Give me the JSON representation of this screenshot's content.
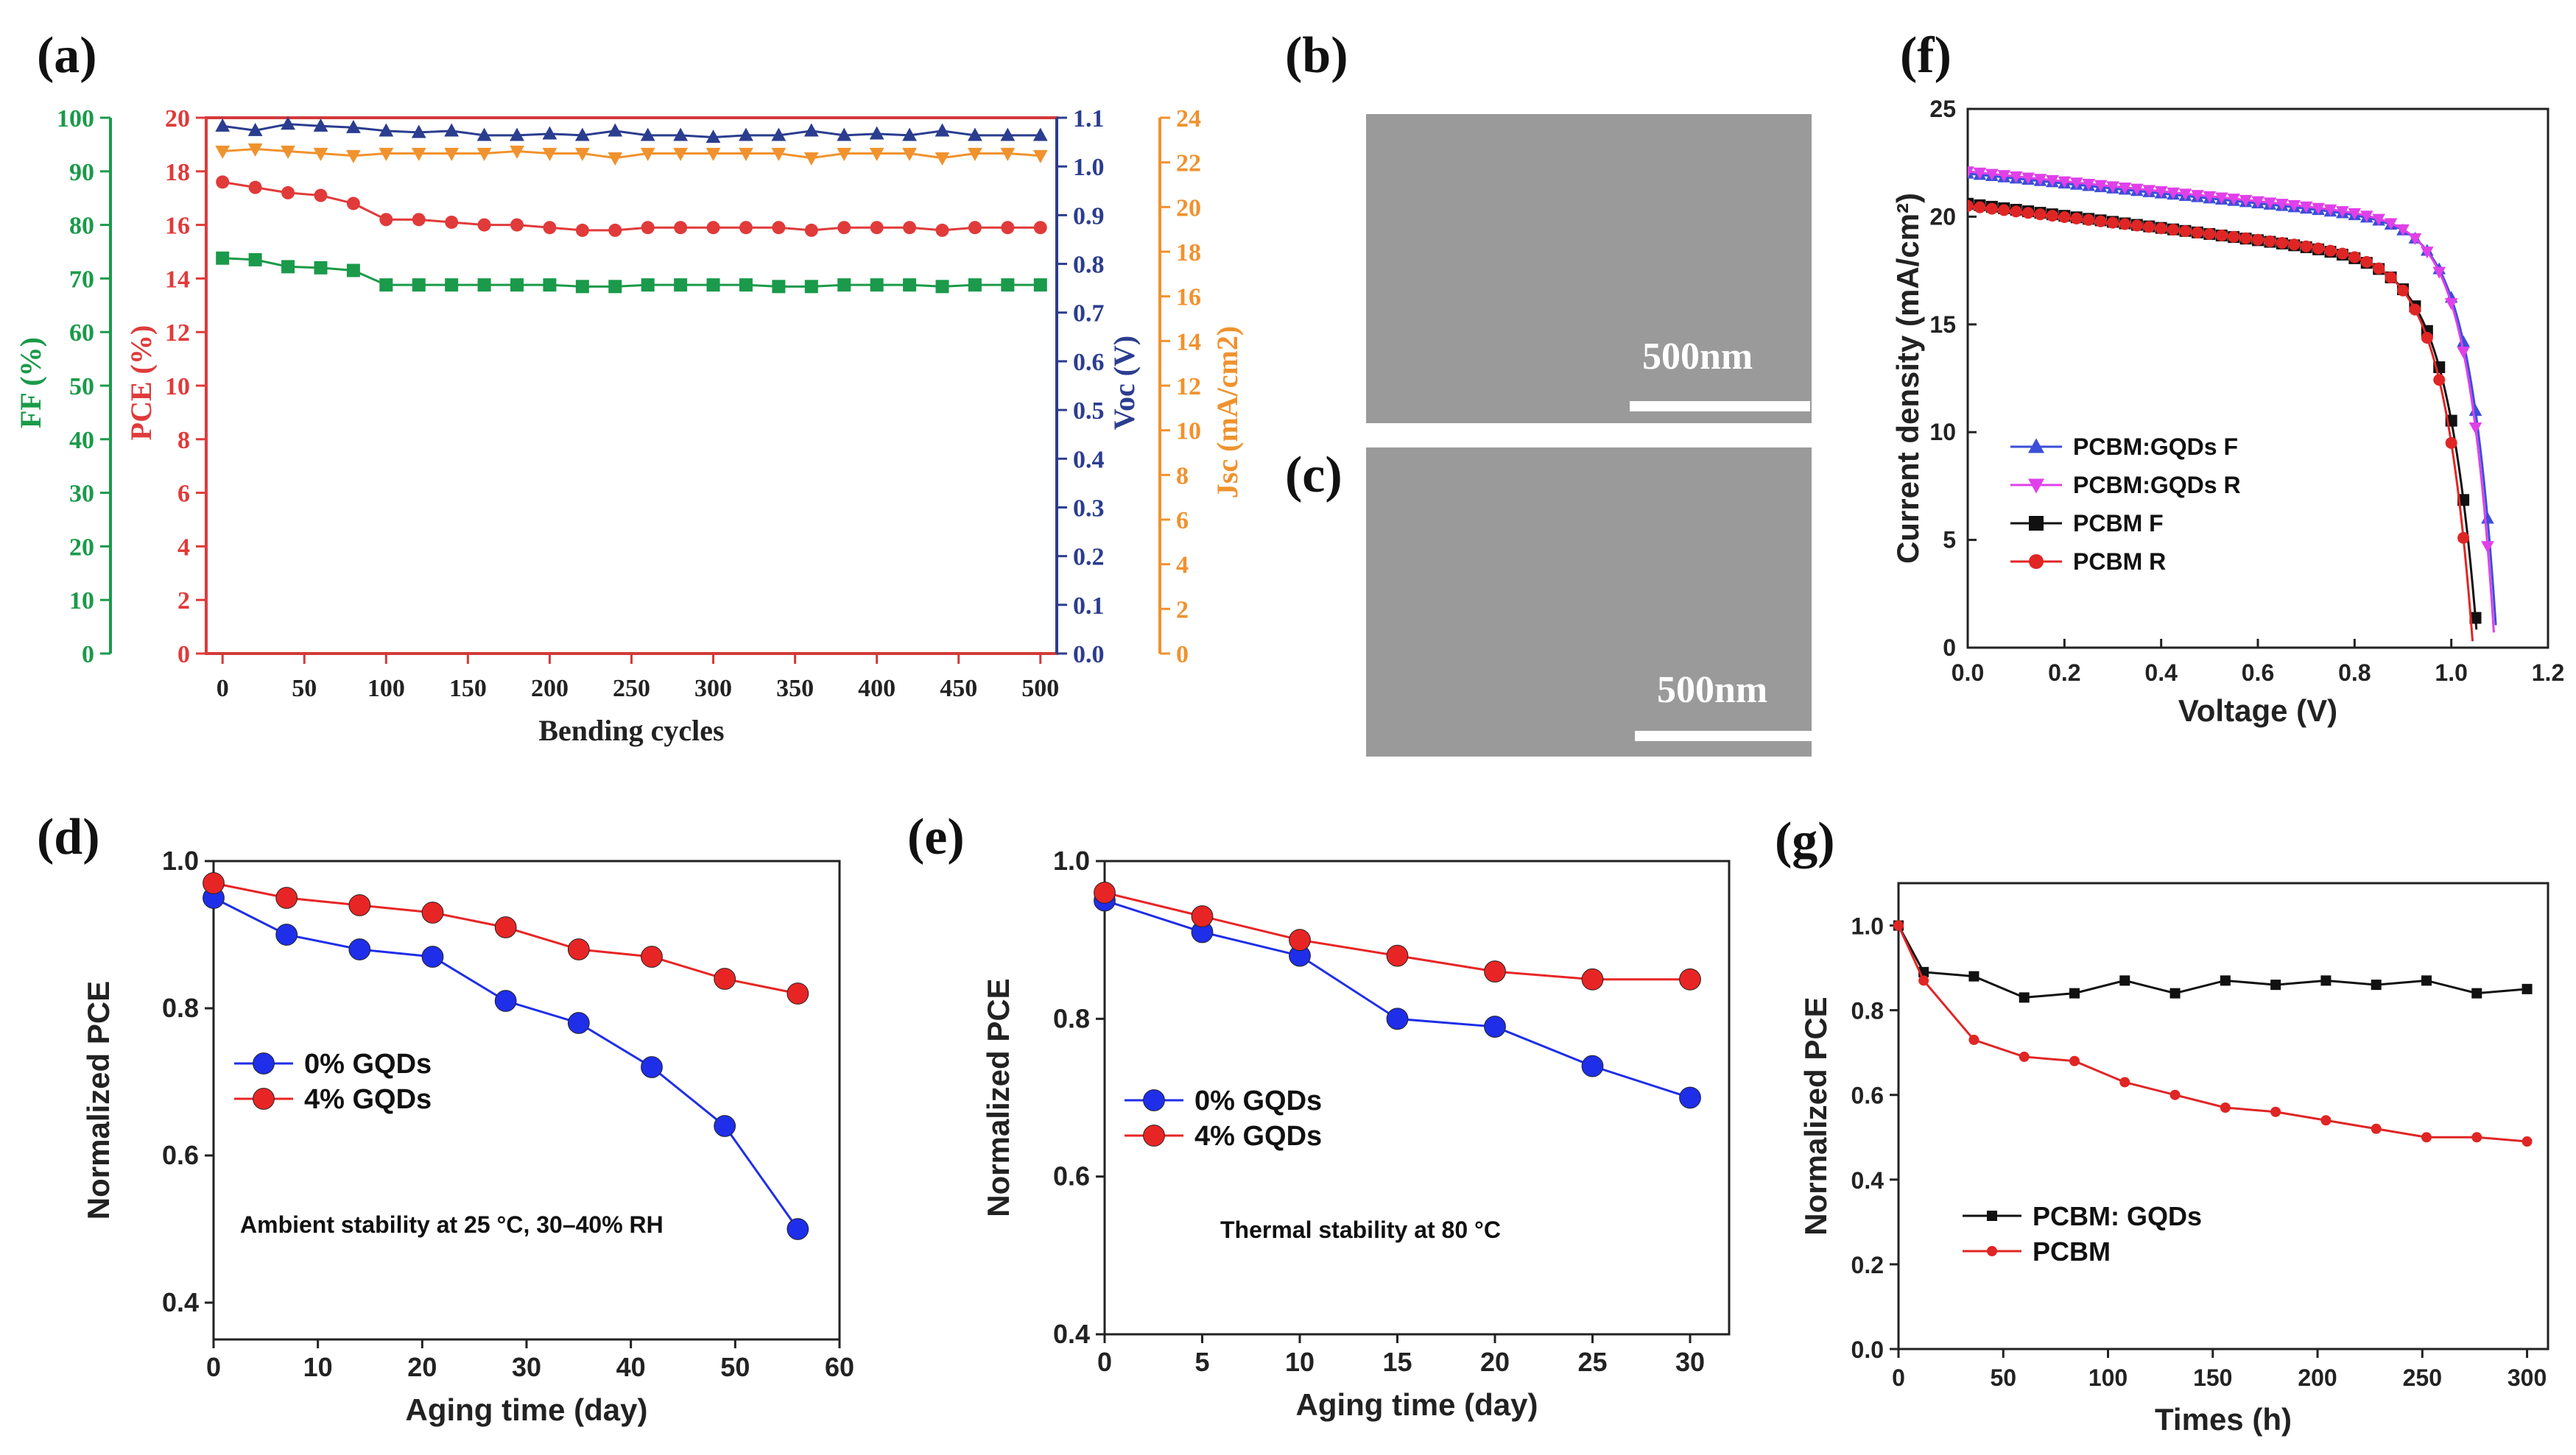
{
  "figure": {
    "panel_letters": [
      "(a)",
      "(b)",
      "(c)",
      "(d)",
      "(e)",
      "(f)",
      "(g)"
    ]
  },
  "sem": {
    "b_scale": "500nm",
    "c_scale": "500nm"
  },
  "chart_data": [
    {
      "id": "a",
      "type": "scatter",
      "xlabel": "Bending cycles",
      "x": [
        0,
        20,
        40,
        60,
        80,
        100,
        120,
        140,
        160,
        180,
        200,
        220,
        240,
        260,
        280,
        300,
        320,
        340,
        360,
        380,
        400,
        420,
        440,
        460,
        480,
        500
      ],
      "xlim": [
        -10,
        510
      ],
      "xticks": [
        0,
        50,
        100,
        150,
        200,
        250,
        300,
        350,
        400,
        450,
        500
      ],
      "axes": [
        {
          "id": "ff",
          "label": "FF (%)",
          "range": [
            0,
            100
          ],
          "ticks": [
            0,
            10,
            20,
            30,
            40,
            50,
            60,
            70,
            80,
            90,
            100
          ],
          "color": "#1a9a4a"
        },
        {
          "id": "pce",
          "label": "PCE (%)",
          "range": [
            0,
            20
          ],
          "ticks": [
            0,
            2,
            4,
            6,
            8,
            10,
            12,
            14,
            16,
            18,
            20
          ],
          "color": "#e03a3a"
        },
        {
          "id": "voc",
          "label": "Voc (V)",
          "range": [
            0,
            1.1
          ],
          "ticks": [
            "0.0",
            "0.1",
            "0.2",
            "0.3",
            "0.4",
            "0.5",
            "0.6",
            "0.7",
            "0.8",
            "0.9",
            "1.0",
            "1.1"
          ],
          "color": "#2b3d8f"
        },
        {
          "id": "jsc",
          "label": "Jsc (mA/cm2)",
          "range": [
            0,
            24
          ],
          "ticks": [
            0,
            2,
            4,
            6,
            8,
            10,
            12,
            14,
            16,
            18,
            20,
            22,
            24
          ],
          "color": "#f0922e"
        }
      ],
      "series": [
        {
          "name": "FF",
          "axis": "ff",
          "marker": "square",
          "color": "#1a9a4a",
          "values": [
            73.8,
            73.5,
            72.2,
            72,
            71.5,
            68.8,
            68.8,
            68.8,
            68.8,
            68.8,
            68.8,
            68.5,
            68.5,
            68.8,
            68.8,
            68.8,
            68.8,
            68.5,
            68.5,
            68.8,
            68.8,
            68.8,
            68.5,
            68.8,
            68.8,
            68.8
          ]
        },
        {
          "name": "PCE",
          "axis": "pce",
          "marker": "circle",
          "color": "#e03a3a",
          "values": [
            17.6,
            17.4,
            17.2,
            17.1,
            16.8,
            16.2,
            16.2,
            16.1,
            16,
            16,
            15.9,
            15.8,
            15.8,
            15.9,
            15.9,
            15.9,
            15.9,
            15.9,
            15.8,
            15.9,
            15.9,
            15.9,
            15.8,
            15.9,
            15.9,
            15.9
          ]
        },
        {
          "name": "Voc",
          "axis": "voc",
          "marker": "triangle-up",
          "color": "#2b3d8f",
          "values": [
            1.083,
            1.074,
            1.087,
            1.083,
            1.08,
            1.073,
            1.07,
            1.073,
            1.064,
            1.064,
            1.067,
            1.064,
            1.073,
            1.064,
            1.064,
            1.06,
            1.064,
            1.064,
            1.073,
            1.064,
            1.067,
            1.064,
            1.073,
            1.064,
            1.064,
            1.064
          ]
        },
        {
          "name": "Jsc",
          "axis": "jsc",
          "marker": "triangle-down",
          "color": "#f0922e",
          "values": [
            22.5,
            22.6,
            22.5,
            22.4,
            22.3,
            22.4,
            22.4,
            22.4,
            22.4,
            22.5,
            22.4,
            22.4,
            22.2,
            22.4,
            22.4,
            22.4,
            22.4,
            22.4,
            22.2,
            22.4,
            22.4,
            22.4,
            22.2,
            22.4,
            22.4,
            22.3
          ]
        }
      ]
    },
    {
      "id": "f",
      "type": "line",
      "xlabel": "Voltage (V)",
      "ylabel": "Current density (mA/cm²)",
      "xlim": [
        0,
        1.2
      ],
      "ylim": [
        0,
        25
      ],
      "xticks": [
        "0.0",
        "0.2",
        "0.4",
        "0.6",
        "0.8",
        "1.0",
        "1.2"
      ],
      "yticks": [
        0,
        5,
        10,
        15,
        20,
        25
      ],
      "legend_position": "lower-left",
      "series": [
        {
          "name": "PCBM:GQDs F",
          "marker": "triangle-up",
          "color": "#3b4fd8",
          "jsc": 22.0,
          "slope": 2.3,
          "voc": 1.095,
          "k": 0.055
        },
        {
          "name": "PCBM:GQDs R",
          "marker": "triangle-down",
          "color": "#e040e8",
          "jsc": 22.1,
          "slope": 2.3,
          "voc": 1.09,
          "k": 0.055
        },
        {
          "name": "PCBM F",
          "marker": "square",
          "color": "#111111",
          "jsc": 20.6,
          "slope": 2.8,
          "voc": 1.055,
          "k": 0.062
        },
        {
          "name": "PCBM R",
          "marker": "circle",
          "color": "#e02525",
          "jsc": 20.5,
          "slope": 2.6,
          "voc": 1.045,
          "k": 0.06
        }
      ]
    },
    {
      "id": "d",
      "type": "line",
      "xlabel": "Aging time (day)",
      "ylabel": "Normalized PCE",
      "xlim": [
        0,
        60
      ],
      "ylim": [
        0.35,
        1.0
      ],
      "xticks": [
        0,
        10,
        20,
        30,
        40,
        50,
        60
      ],
      "yticks": [
        "0.4",
        "0.6",
        "0.8",
        "1.0"
      ],
      "annotation": "Ambient stability at 25 °C, 30–40% RH",
      "legend_position": "center-left",
      "x": [
        0,
        7,
        14,
        21,
        28,
        35,
        42,
        49,
        56
      ],
      "series": [
        {
          "name": "0% GQDs",
          "color": "#1f2ee8",
          "values": [
            0.95,
            0.9,
            0.88,
            0.87,
            0.81,
            0.78,
            0.72,
            0.64,
            0.5
          ]
        },
        {
          "name": "4% GQDs",
          "color": "#e82525",
          "values": [
            0.97,
            0.95,
            0.94,
            0.93,
            0.91,
            0.88,
            0.87,
            0.84,
            0.82
          ]
        }
      ]
    },
    {
      "id": "e",
      "type": "line",
      "xlabel": "Aging time (day)",
      "ylabel": "Normalized PCE",
      "xlim": [
        0,
        32
      ],
      "ylim": [
        0.4,
        1.0
      ],
      "xticks": [
        0,
        5,
        10,
        15,
        20,
        25,
        30
      ],
      "yticks": [
        "0.4",
        "0.6",
        "0.8",
        "1.0"
      ],
      "annotation": "Thermal stability at 80 °C",
      "legend_position": "center-left",
      "x": [
        0,
        5,
        10,
        15,
        20,
        25,
        30
      ],
      "series": [
        {
          "name": "0% GQDs",
          "color": "#1f2ee8",
          "values": [
            0.95,
            0.91,
            0.88,
            0.8,
            0.79,
            0.74,
            0.7
          ]
        },
        {
          "name": "4% GQDs",
          "color": "#e82525",
          "values": [
            0.96,
            0.93,
            0.9,
            0.88,
            0.86,
            0.85,
            0.85
          ]
        }
      ]
    },
    {
      "id": "g",
      "type": "line",
      "xlabel": "Times (h)",
      "ylabel": "Normalized PCE",
      "xlim": [
        0,
        310
      ],
      "ylim": [
        0,
        1.1
      ],
      "xticks": [
        0,
        50,
        100,
        150,
        200,
        250,
        300
      ],
      "yticks": [
        "0.0",
        "0.2",
        "0.4",
        "0.6",
        "0.8",
        "1.0"
      ],
      "legend_position": "lower-left",
      "x": [
        0,
        12,
        36,
        60,
        84,
        108,
        132,
        156,
        180,
        204,
        228,
        252,
        276,
        300
      ],
      "series": [
        {
          "name": "PCBM: GQDs",
          "marker": "square",
          "color": "#111111",
          "values": [
            1.0,
            0.89,
            0.88,
            0.83,
            0.84,
            0.87,
            0.84,
            0.87,
            0.86,
            0.87,
            0.86,
            0.87,
            0.84,
            0.85
          ]
        },
        {
          "name": "PCBM",
          "marker": "circle",
          "color": "#e02525",
          "values": [
            1.0,
            0.87,
            0.73,
            0.69,
            0.68,
            0.63,
            0.6,
            0.57,
            0.56,
            0.54,
            0.52,
            0.5,
            0.5,
            0.49
          ]
        }
      ]
    }
  ]
}
